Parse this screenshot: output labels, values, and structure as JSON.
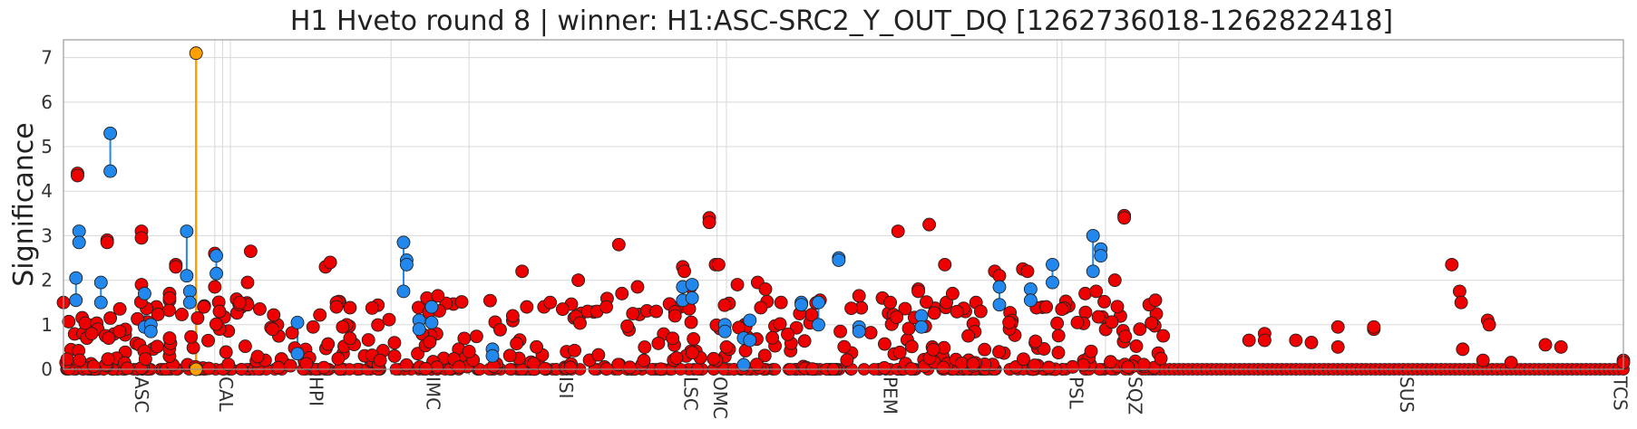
{
  "chart_data": {
    "type": "scatter",
    "title": "H1 Hveto round 8 | winner: H1:ASC-SRC2_Y_OUT_DQ [1262736018-1262822418]",
    "ylabel": "Significance",
    "xlabel": "",
    "ylim": [
      0,
      7.4
    ],
    "yticks": [
      0,
      1,
      2,
      3,
      4,
      5,
      6,
      7
    ],
    "grid": true,
    "x_range": [
      0,
      1000
    ],
    "categories": [
      {
        "label": "ASC",
        "x": 50
      },
      {
        "label": "CAL",
        "x": 104
      },
      {
        "label": "HPI",
        "x": 162
      },
      {
        "label": "IMC",
        "x": 237
      },
      {
        "label": "ISI",
        "x": 322
      },
      {
        "label": "LSC",
        "x": 402
      },
      {
        "label": "OMC",
        "x": 421
      },
      {
        "label": "PEM",
        "x": 530
      },
      {
        "label": "PSL",
        "x": 649
      },
      {
        "label": "SQZ",
        "x": 687
      },
      {
        "label": "SUS",
        "x": 861
      },
      {
        "label": "TCS",
        "x": 998
      }
    ],
    "group_boundaries": [
      0,
      97,
      102,
      107,
      210,
      260,
      419,
      425,
      637,
      640,
      668,
      715,
      1000
    ],
    "colors": {
      "normal": "#ee0000",
      "coupled": "#2288ee",
      "winner": "#ff9f00"
    },
    "winner": {
      "x": 85,
      "y": 7.1
    },
    "coupled_pairs": [
      [
        8,
        2.05,
        8,
        1.55
      ],
      [
        10,
        3.1,
        10,
        2.85
      ],
      [
        24,
        1.95,
        24,
        1.5
      ],
      [
        30,
        5.3,
        30,
        4.45
      ],
      [
        52,
        1.7,
        52,
        0.95
      ],
      [
        56,
        1.0,
        56,
        0.85
      ],
      [
        79,
        3.1,
        79,
        2.1
      ],
      [
        81,
        1.75,
        81,
        1.5
      ],
      [
        98,
        2.55,
        98,
        2.15
      ],
      [
        150,
        1.05,
        150,
        0.35
      ],
      [
        218,
        2.85,
        218,
        1.75
      ],
      [
        220,
        2.45,
        220,
        2.35
      ],
      [
        228,
        1.1,
        228,
        0.9
      ],
      [
        236,
        1.4,
        236,
        1.05
      ],
      [
        275,
        0.45,
        275,
        0.3
      ],
      [
        397,
        1.85,
        397,
        1.55
      ],
      [
        403,
        1.9,
        403,
        1.6
      ],
      [
        424,
        1.0,
        424,
        0.85
      ],
      [
        436,
        0.7,
        436,
        0.1
      ],
      [
        440,
        1.1,
        440,
        0.65
      ],
      [
        473,
        1.5,
        473,
        1.45
      ],
      [
        484,
        1.5,
        484,
        1.0
      ],
      [
        497,
        2.5,
        497,
        2.45
      ],
      [
        510,
        0.95,
        510,
        0.85
      ],
      [
        550,
        1.2,
        550,
        0.95
      ],
      [
        600,
        1.85,
        600,
        1.45
      ],
      [
        620,
        1.8,
        620,
        1.55
      ],
      [
        634,
        2.35,
        634,
        1.95
      ],
      [
        660,
        3.0,
        660,
        2.2
      ],
      [
        665,
        2.7,
        665,
        2.55
      ]
    ],
    "high_points": [
      [
        9,
        4.4
      ],
      [
        9,
        4.35
      ],
      [
        22,
        0.9
      ],
      [
        28,
        2.9
      ],
      [
        28,
        2.85
      ],
      [
        30,
        1.15
      ],
      [
        36,
        0.85
      ],
      [
        50,
        3.1
      ],
      [
        50,
        2.95
      ],
      [
        50,
        1.9
      ],
      [
        68,
        1.7
      ],
      [
        68,
        1.6
      ],
      [
        68,
        0.7
      ],
      [
        72,
        2.35
      ],
      [
        72,
        2.3
      ],
      [
        86,
        1.15
      ],
      [
        90,
        1.4
      ],
      [
        97,
        1.85
      ],
      [
        97,
        2.6
      ],
      [
        100,
        1.3
      ],
      [
        120,
        2.65
      ],
      [
        118,
        1.45
      ],
      [
        118,
        1.95
      ],
      [
        113,
        1.5
      ],
      [
        134,
        0.9
      ],
      [
        168,
        2.3
      ],
      [
        171,
        2.4
      ],
      [
        175,
        1.5
      ],
      [
        175,
        1.4
      ],
      [
        160,
        0.95
      ],
      [
        179,
        0.95
      ],
      [
        203,
        0.2
      ],
      [
        233,
        1.6
      ],
      [
        240,
        1.65
      ],
      [
        260,
        0.4
      ],
      [
        288,
        1.2
      ],
      [
        294,
        2.2
      ],
      [
        297,
        1.4
      ],
      [
        312,
        1.5
      ],
      [
        320,
        1.35
      ],
      [
        330,
        2.0
      ],
      [
        336,
        1.3
      ],
      [
        342,
        1.3
      ],
      [
        348,
        1.4
      ],
      [
        356,
        2.8
      ],
      [
        358,
        1.7
      ],
      [
        365,
        1.25
      ],
      [
        368,
        1.85
      ],
      [
        380,
        1.3
      ],
      [
        392,
        1.2
      ],
      [
        397,
        2.3
      ],
      [
        398,
        2.2
      ],
      [
        402,
        1.85
      ],
      [
        414,
        3.4
      ],
      [
        414,
        3.3
      ],
      [
        418,
        2.35
      ],
      [
        420,
        2.35
      ],
      [
        425,
        0.5
      ],
      [
        432,
        1.9
      ],
      [
        445,
        1.95
      ],
      [
        450,
        1.8
      ],
      [
        460,
        1.5
      ],
      [
        472,
        1.25
      ],
      [
        485,
        1.55
      ],
      [
        498,
        0.85
      ],
      [
        510,
        1.65
      ],
      [
        525,
        1.6
      ],
      [
        530,
        1.5
      ],
      [
        535,
        3.1
      ],
      [
        548,
        1.8
      ],
      [
        548,
        1.75
      ],
      [
        555,
        3.25
      ],
      [
        565,
        2.35
      ],
      [
        566,
        1.5
      ],
      [
        570,
        1.7
      ],
      [
        580,
        0.75
      ],
      [
        585,
        1.5
      ],
      [
        588,
        1.3
      ],
      [
        597,
        2.2
      ],
      [
        600,
        2.1
      ],
      [
        615,
        2.25
      ],
      [
        618,
        2.2
      ],
      [
        630,
        1.4
      ],
      [
        640,
        1.35
      ],
      [
        650,
        1.05
      ],
      [
        655,
        1.7
      ],
      [
        662,
        1.75
      ],
      [
        674,
        2.0
      ],
      [
        680,
        3.45
      ],
      [
        680,
        3.4
      ],
      [
        690,
        0.9
      ],
      [
        696,
        1.45
      ],
      [
        700,
        1.55
      ],
      [
        705,
        0.75
      ],
      [
        760,
        0.65
      ],
      [
        770,
        0.8
      ],
      [
        770,
        0.65
      ],
      [
        790,
        0.65
      ],
      [
        800,
        0.6
      ],
      [
        817,
        0.95
      ],
      [
        817,
        0.5
      ],
      [
        840,
        0.9
      ],
      [
        840,
        0.95
      ],
      [
        950,
        0.55
      ],
      [
        960,
        0.5
      ],
      [
        1000,
        0.2
      ],
      [
        1000,
        0.15
      ],
      [
        890,
        2.35
      ],
      [
        895,
        1.75
      ],
      [
        896,
        1.5
      ],
      [
        897,
        0.45
      ],
      [
        913,
        1.1
      ],
      [
        914,
        1.0
      ],
      [
        910,
        0.2
      ],
      [
        928,
        0.15
      ],
      [
        0,
        1.5
      ],
      [
        15,
        0.7
      ],
      [
        18,
        0.8
      ],
      [
        27,
        0.75
      ],
      [
        29,
        0.7
      ]
    ]
  }
}
